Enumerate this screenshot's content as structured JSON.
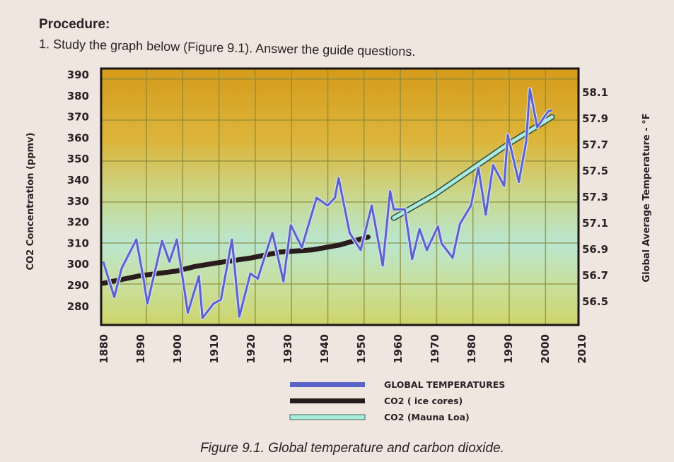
{
  "page": {
    "heading": "Procedure:",
    "instruction": "1. Study the graph below (Figure 9.1). Answer the guide questions.",
    "caption": "Figure 9.1. Global temperature and carbon dioxide."
  },
  "chart_data": {
    "type": "line",
    "title": "",
    "xlabel": "",
    "ylabel_left": "CO2 Concentration (ppmv)",
    "ylabel_right": "Global Average Temperature - °F",
    "xlim": [
      1880,
      2010
    ],
    "ylim_left": [
      280,
      390
    ],
    "ylim_right": [
      56.5,
      58.1
    ],
    "x_ticks": [
      "1880",
      "1890",
      "1900",
      "1910",
      "1920",
      "1930",
      "1940",
      "1950",
      "1960",
      "1970",
      "1980",
      "1990",
      "2000",
      "2010"
    ],
    "y_ticks_left": [
      "390",
      "380",
      "370",
      "360",
      "350",
      "340",
      "330",
      "320",
      "310",
      "300",
      "290",
      "280"
    ],
    "y_ticks_right": [
      "58.1",
      "57.9",
      "57.7",
      "57.5",
      "57.3",
      "57.1",
      "56.9",
      "56.7",
      "56.5"
    ],
    "grid": true,
    "legend_position": "bottom",
    "series": [
      {
        "name": "GLOBAL TEMPERATURES",
        "axis": "right",
        "color": "#5a63c8",
        "x": [
          1880,
          1883,
          1885,
          1889,
          1891,
          1892,
          1896,
          1898,
          1900,
          1903,
          1906,
          1907,
          1910,
          1912,
          1915,
          1917,
          1920,
          1922,
          1926,
          1929,
          1931,
          1934,
          1938,
          1941,
          1943,
          1944,
          1947,
          1950,
          1953,
          1956,
          1958,
          1959,
          1962,
          1964,
          1966,
          1968,
          1971,
          1972,
          1975,
          1977,
          1980,
          1982,
          1984,
          1986,
          1989,
          1990,
          1993,
          1995,
          1996,
          1998,
          2001,
          2002
        ],
        "values": [
          56.8,
          56.53,
          56.75,
          56.97,
          56.66,
          56.48,
          56.96,
          56.8,
          56.97,
          56.41,
          56.69,
          56.37,
          56.48,
          56.51,
          56.97,
          56.38,
          56.71,
          56.67,
          57.02,
          56.65,
          57.08,
          56.91,
          57.29,
          57.23,
          57.29,
          57.44,
          57.02,
          56.89,
          57.23,
          56.77,
          57.34,
          57.2,
          57.2,
          56.82,
          57.05,
          56.89,
          57.07,
          56.94,
          56.83,
          57.09,
          57.23,
          57.52,
          57.16,
          57.54,
          57.38,
          57.77,
          57.41,
          57.72,
          58.12,
          57.83,
          57.95,
          57.96
        ]
      },
      {
        "name": "CO2 ( ice cores)",
        "axis": "left",
        "color": "#2a1c1c",
        "x": [
          1880,
          1890,
          1900,
          1905,
          1911,
          1920,
          1928,
          1937,
          1944,
          1952
        ],
        "values": [
          291,
          294.6,
          296.8,
          299,
          300.7,
          303,
          305.8,
          306.9,
          309.1,
          313
        ]
      },
      {
        "name": "CO2 (Mauna Loa)",
        "axis": "left",
        "color": "#a8ecdc",
        "x": [
          1959,
          1970,
          1980,
          1990,
          2002
        ],
        "values": [
          322,
          333,
          345,
          357,
          370
        ]
      }
    ]
  }
}
